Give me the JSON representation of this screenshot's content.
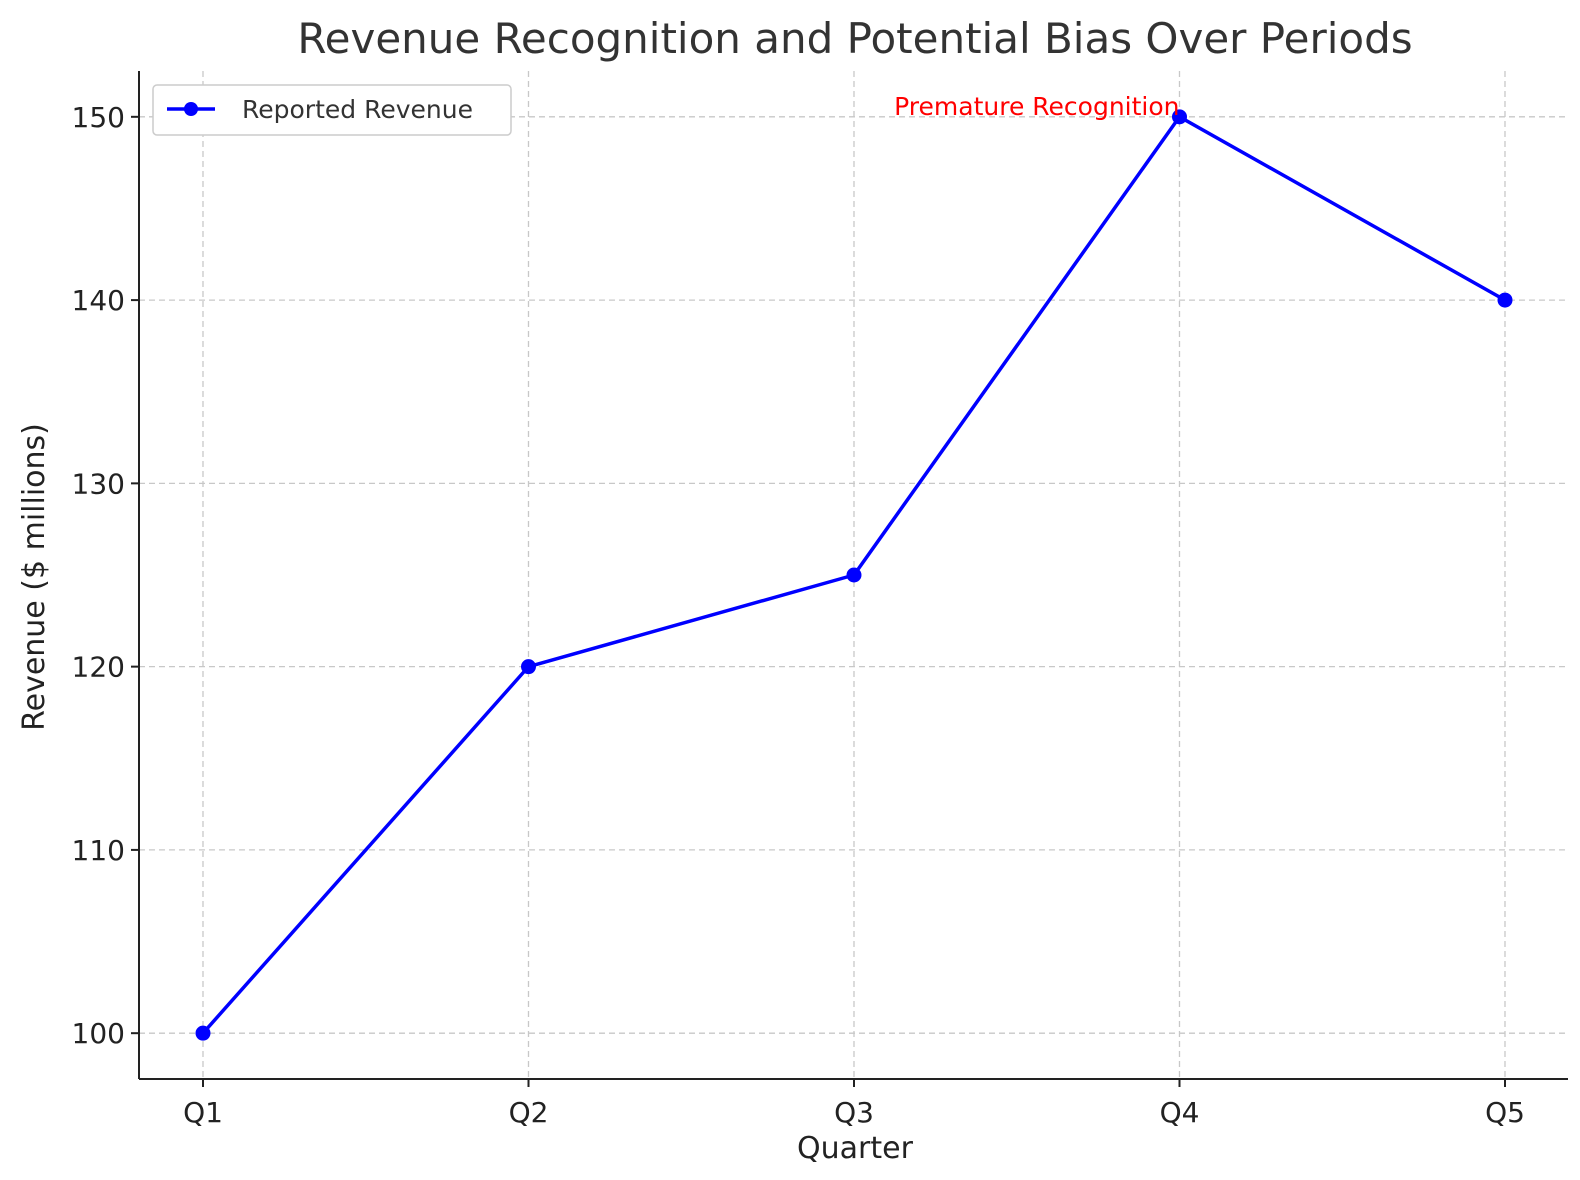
{
  "chart_data": {
    "type": "line",
    "title": "Revenue Recognition and Potential Bias Over Periods",
    "xlabel": "Quarter",
    "ylabel": "Revenue ($ millions)",
    "categories": [
      "Q1",
      "Q2",
      "Q3",
      "Q4",
      "Q5"
    ],
    "series": [
      {
        "name": "Reported Revenue",
        "values": [
          100,
          120,
          125,
          150,
          140
        ],
        "color": "#0000ff",
        "marker": "circle"
      }
    ],
    "yticks": [
      100,
      110,
      120,
      130,
      140,
      150
    ],
    "ylim": [
      97.5,
      152.5
    ],
    "grid": true,
    "legend_position": "top-left",
    "annotations": [
      {
        "text": "Premature Recognition",
        "category": "Q4",
        "value": 150,
        "color": "#ff0000"
      }
    ]
  }
}
